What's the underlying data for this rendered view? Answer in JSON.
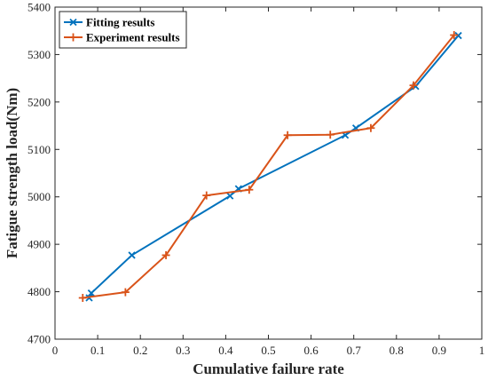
{
  "chart_data": {
    "type": "line",
    "xlabel": "Cumulative failure rate",
    "ylabel": "Fatigue strength load(Nm)",
    "xlim": [
      0,
      1
    ],
    "ylim": [
      4700,
      5400
    ],
    "xticks": [
      "0",
      "0.1",
      "0.2",
      "0.3",
      "0.4",
      "0.5",
      "0.6",
      "0.7",
      "0.8",
      "0.9",
      "1"
    ],
    "yticks": [
      "4700",
      "4800",
      "4900",
      "5000",
      "5100",
      "5200",
      "5300",
      "5400"
    ],
    "grid": false,
    "legend_position": "top-left",
    "series": [
      {
        "name": "Fitting results",
        "color": "#0072BD",
        "marker": "x",
        "x": [
          0.08,
          0.085,
          0.18,
          0.41,
          0.43,
          0.68,
          0.705,
          0.845,
          0.945
        ],
        "y": [
          4787,
          4797,
          4877,
          5002,
          5017,
          5130,
          5145,
          5233,
          5340
        ]
      },
      {
        "name": "Experiment results",
        "color": "#D95319",
        "marker": "+",
        "x": [
          0.065,
          0.165,
          0.26,
          0.355,
          0.455,
          0.545,
          0.645,
          0.74,
          0.84,
          0.935
        ],
        "y": [
          4787,
          4799,
          4877,
          5003,
          5015,
          5130,
          5131,
          5145,
          5235,
          5341
        ]
      }
    ]
  }
}
